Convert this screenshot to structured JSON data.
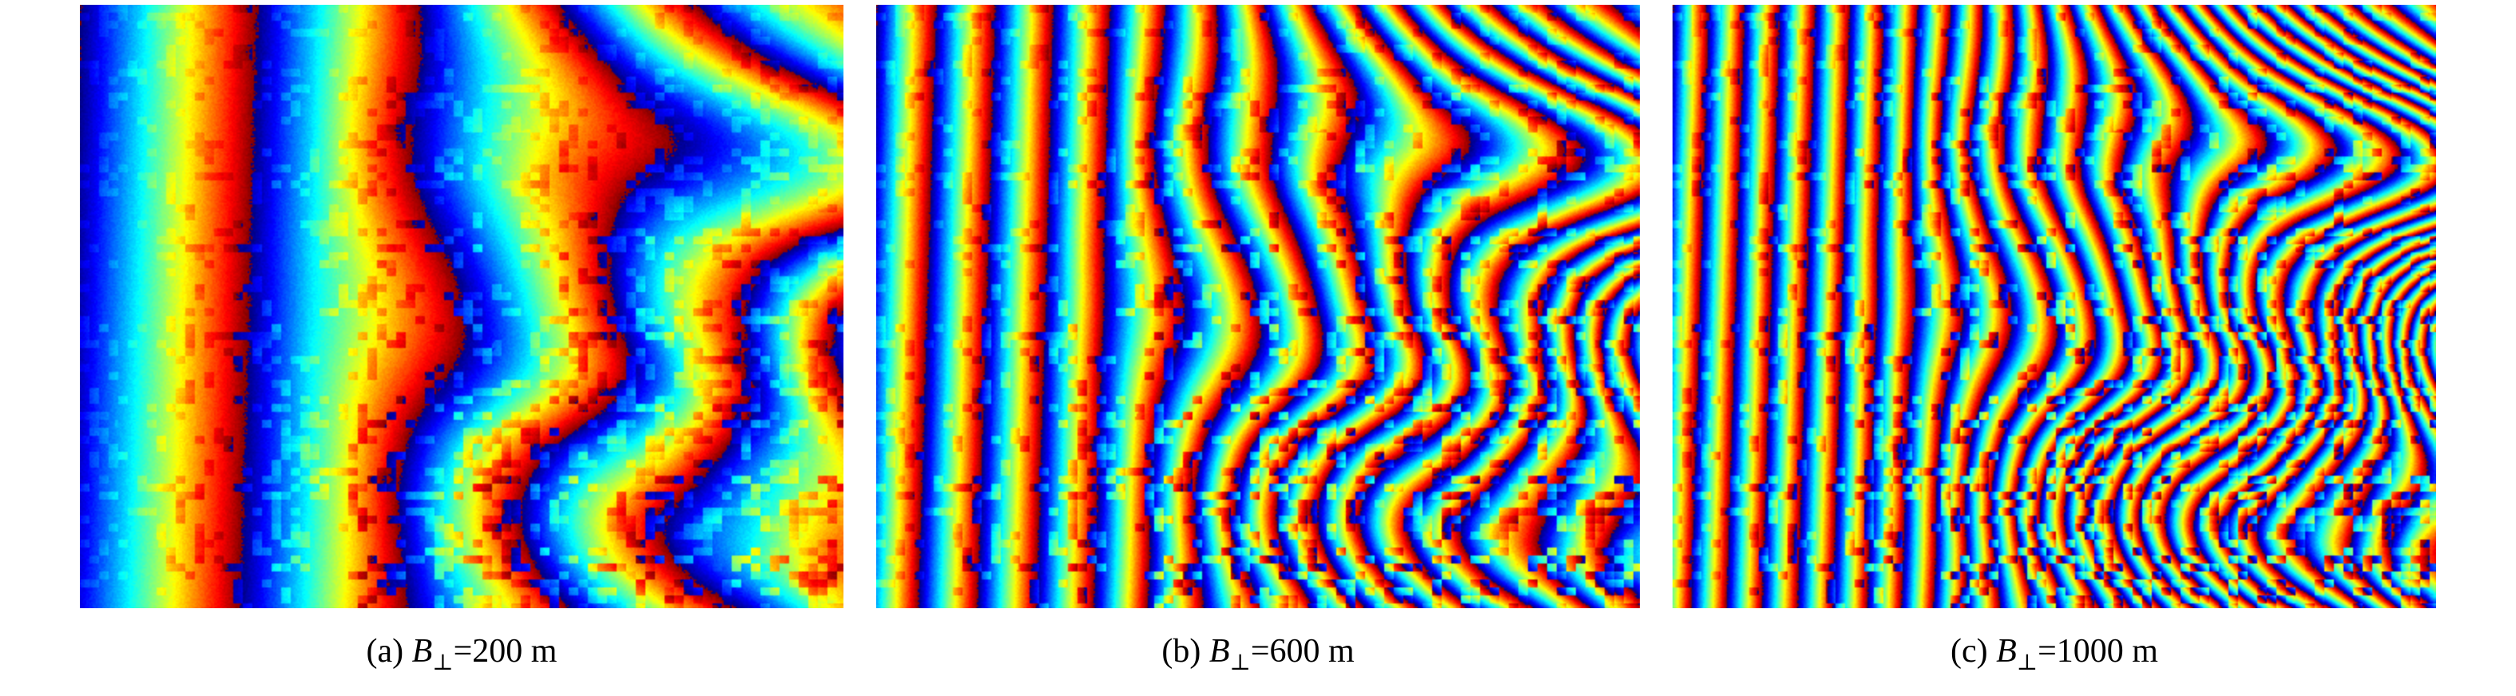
{
  "figure": {
    "colormap": "jet",
    "panels": [
      {
        "label": "(a)",
        "symbol": "B",
        "subscript": "⊥",
        "value": "=200 m",
        "baseline_m": 200
      },
      {
        "label": "(b)",
        "symbol": "B",
        "subscript": "⊥",
        "value": "=600 m",
        "baseline_m": 600
      },
      {
        "label": "(c)",
        "symbol": "B",
        "subscript": "⊥",
        "value": "=1000 m",
        "baseline_m": 1000
      }
    ]
  }
}
